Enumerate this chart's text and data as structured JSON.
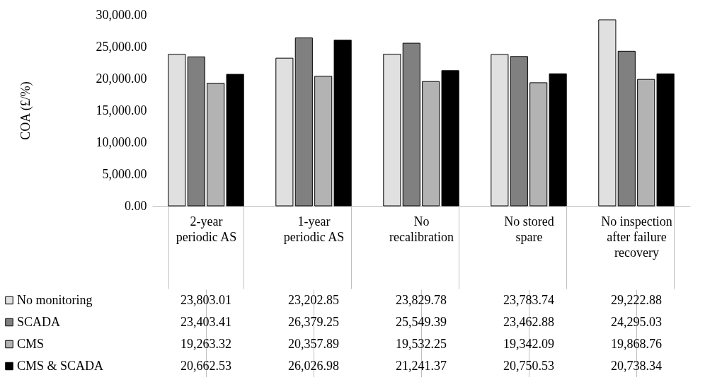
{
  "chart_data": {
    "type": "bar",
    "ylabel": "COA (£/%)",
    "categories": [
      "2-year periodic AS",
      "1-year periodic AS",
      "No recalibration",
      "No stored spare",
      "No inspection after failure recovery"
    ],
    "series": [
      {
        "name": "No monitoring",
        "color": "#e0e0e0",
        "values": [
          23803.01,
          23202.85,
          23829.78,
          23783.74,
          29222.88
        ],
        "value_labels": [
          "23,803.01",
          "23,202.85",
          "23,829.78",
          "23,783.74",
          "29,222.88"
        ]
      },
      {
        "name": "SCADA",
        "color": "#808080",
        "values": [
          23403.41,
          26379.25,
          25549.39,
          23462.88,
          24295.03
        ],
        "value_labels": [
          "23,403.41",
          "26,379.25",
          "25,549.39",
          "23,462.88",
          "24,295.03"
        ]
      },
      {
        "name": "CMS",
        "color": "#b3b3b3",
        "values": [
          19263.32,
          20357.89,
          19532.25,
          19342.09,
          19868.76
        ],
        "value_labels": [
          "19,263.32",
          "20,357.89",
          "19,532.25",
          "19,342.09",
          "19,868.76"
        ]
      },
      {
        "name": "CMS & SCADA",
        "color": "#000000",
        "values": [
          20662.53,
          26026.98,
          21241.37,
          20750.53,
          20738.34
        ],
        "value_labels": [
          "20,662.53",
          "26,026.98",
          "21,241.37",
          "20,750.53",
          "20,738.34"
        ]
      }
    ],
    "ylim": [
      0,
      30000
    ],
    "yticks": [
      {
        "value": 0,
        "label": "0.00"
      },
      {
        "value": 5000,
        "label": "5,000.00"
      },
      {
        "value": 10000,
        "label": "10,000.00"
      },
      {
        "value": 15000,
        "label": "15,000.00"
      },
      {
        "value": 20000,
        "label": "20,000.00"
      },
      {
        "value": 25000,
        "label": "25,000.00"
      },
      {
        "value": 30000,
        "label": "30,000.00"
      }
    ],
    "grid": false,
    "legend": "bottom left"
  }
}
